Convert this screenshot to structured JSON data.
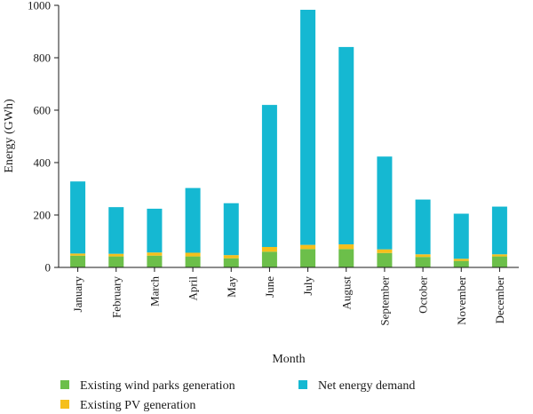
{
  "chart_data": {
    "type": "bar",
    "stacked": true,
    "title": "",
    "xlabel": "Month",
    "ylabel": "Energy (GWh)",
    "ylim": [
      0,
      1000
    ],
    "yticks": [
      0,
      200,
      400,
      600,
      800,
      1000
    ],
    "grid": false,
    "legend_position": "bottom",
    "categories": [
      "January",
      "February",
      "March",
      "April",
      "May",
      "June",
      "July",
      "August",
      "September",
      "October",
      "November",
      "December"
    ],
    "series": [
      {
        "name": "Existing wind parks generation",
        "color": "#6cbf4a",
        "values": [
          45,
          42,
          45,
          42,
          35,
          60,
          70,
          70,
          55,
          40,
          25,
          42
        ]
      },
      {
        "name": "Existing PV generation",
        "color": "#f5bf1b",
        "values": [
          8,
          10,
          12,
          14,
          12,
          18,
          16,
          18,
          14,
          10,
          8,
          8
        ]
      },
      {
        "name": "Net energy demand",
        "color": "#15b8d2",
        "values": [
          275,
          178,
          167,
          247,
          198,
          542,
          897,
          753,
          354,
          209,
          172,
          182
        ]
      }
    ]
  }
}
